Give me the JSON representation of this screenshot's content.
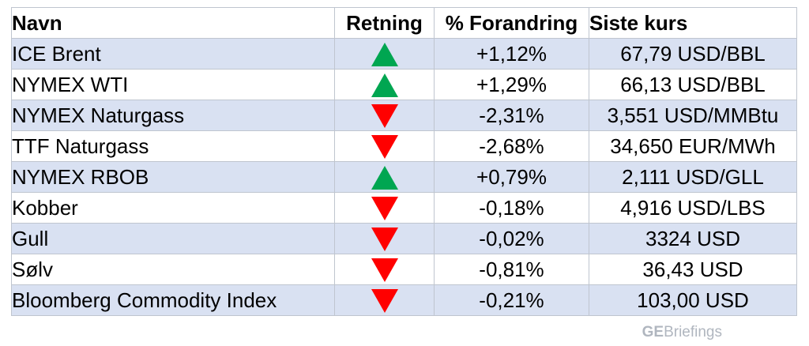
{
  "headers": {
    "name": "Navn",
    "direction": "Retning",
    "change": "% Forandring",
    "price": "Siste kurs"
  },
  "rows": [
    {
      "name": "ICE Brent",
      "direction": "up",
      "change": "+1,12%",
      "price": "67,79 USD/BBL"
    },
    {
      "name": "NYMEX WTI",
      "direction": "up",
      "change": "+1,29%",
      "price": "66,13 USD/BBL"
    },
    {
      "name": "NYMEX Naturgass",
      "direction": "down",
      "change": "-2,31%",
      "price": "3,551 USD/MMBtu"
    },
    {
      "name": "TTF Naturgass",
      "direction": "down",
      "change": "-2,68%",
      "price": "34,650 EUR/MWh"
    },
    {
      "name": "NYMEX RBOB",
      "direction": "up",
      "change": "+0,79%",
      "price": "2,111 USD/GLL"
    },
    {
      "name": "Kobber",
      "direction": "down",
      "change": "-0,18%",
      "price": "4,916 USD/LBS"
    },
    {
      "name": "Gull",
      "direction": "down",
      "change": "-0,02%",
      "price": "3324 USD"
    },
    {
      "name": "Sølv",
      "direction": "down",
      "change": "-0,81%",
      "price": "36,43 USD"
    },
    {
      "name": "Bloomberg Commodity Index",
      "direction": "down",
      "change": "-0,21%",
      "price": "103,00 USD"
    }
  ],
  "colors": {
    "up": "#00a651",
    "down": "#ff0000",
    "row_shade": "#d9e1f2"
  },
  "watermark": {
    "bold": "GE",
    "rest": "Briefings"
  }
}
